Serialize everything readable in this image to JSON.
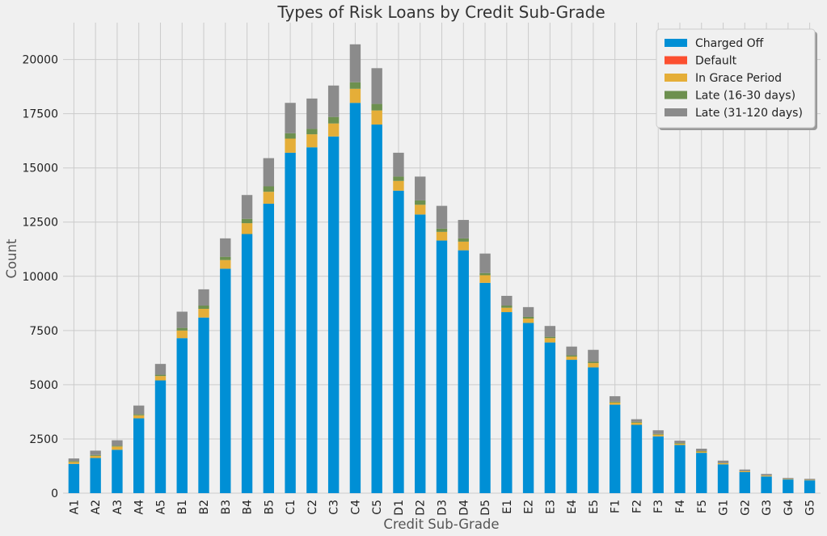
{
  "chart_data": {
    "type": "bar",
    "stacked": true,
    "title": "Types of Risk Loans by Credit Sub-Grade",
    "xlabel": "Credit Sub-Grade",
    "ylabel": "Count",
    "ylim": [
      0,
      21700
    ],
    "yticks": [
      0,
      2500,
      5000,
      7500,
      10000,
      12500,
      15000,
      17500,
      20000
    ],
    "grid": true,
    "legend_position": "top-right",
    "categories": [
      "A1",
      "A2",
      "A3",
      "A4",
      "A5",
      "B1",
      "B2",
      "B3",
      "B4",
      "B5",
      "C1",
      "C2",
      "C3",
      "C4",
      "C5",
      "D1",
      "D2",
      "D3",
      "D4",
      "D5",
      "E1",
      "E2",
      "E3",
      "E4",
      "E5",
      "F1",
      "F2",
      "F3",
      "F4",
      "F5",
      "G1",
      "G2",
      "G3",
      "G4",
      "G5"
    ],
    "series": [
      {
        "name": "Charged Off",
        "color": "#008fd5",
        "values": [
          1350,
          1620,
          2000,
          3450,
          5200,
          7150,
          8100,
          10350,
          11950,
          13350,
          15700,
          15950,
          16450,
          18000,
          17000,
          13950,
          12850,
          11650,
          11200,
          9700,
          8350,
          7850,
          6950,
          6150,
          5800,
          4080,
          3150,
          2620,
          2220,
          1860,
          1330,
          970,
          770,
          630,
          590
        ]
      },
      {
        "name": "Default",
        "color": "#fc4f30",
        "values": [
          0,
          0,
          0,
          0,
          0,
          0,
          0,
          0,
          0,
          0,
          0,
          0,
          0,
          0,
          0,
          0,
          0,
          0,
          0,
          0,
          0,
          0,
          0,
          0,
          0,
          0,
          0,
          0,
          0,
          0,
          0,
          0,
          0,
          0,
          0
        ]
      },
      {
        "name": "In Grace Period",
        "color": "#e5ae38",
        "values": [
          90,
          100,
          150,
          140,
          200,
          350,
          400,
          400,
          500,
          550,
          650,
          600,
          600,
          650,
          650,
          450,
          450,
          400,
          400,
          350,
          200,
          200,
          200,
          150,
          200,
          100,
          100,
          80,
          60,
          60,
          50,
          40,
          40,
          20,
          20
        ]
      },
      {
        "name": "Late (16-30 days)",
        "color": "#6d904f",
        "values": [
          40,
          40,
          40,
          50,
          60,
          120,
          150,
          150,
          200,
          250,
          250,
          250,
          300,
          300,
          300,
          200,
          200,
          150,
          150,
          100,
          100,
          80,
          60,
          60,
          60,
          40,
          40,
          30,
          30,
          20,
          10,
          10,
          5,
          5,
          5
        ]
      },
      {
        "name": "Late (31-120 days)",
        "color": "#8b8b8b",
        "values": [
          120,
          200,
          250,
          400,
          500,
          750,
          750,
          850,
          1100,
          1300,
          1400,
          1400,
          1450,
          1750,
          1650,
          1100,
          1100,
          1050,
          850,
          900,
          450,
          450,
          500,
          400,
          550,
          250,
          120,
          170,
          110,
          110,
          110,
          70,
          70,
          45,
          45
        ]
      }
    ]
  }
}
